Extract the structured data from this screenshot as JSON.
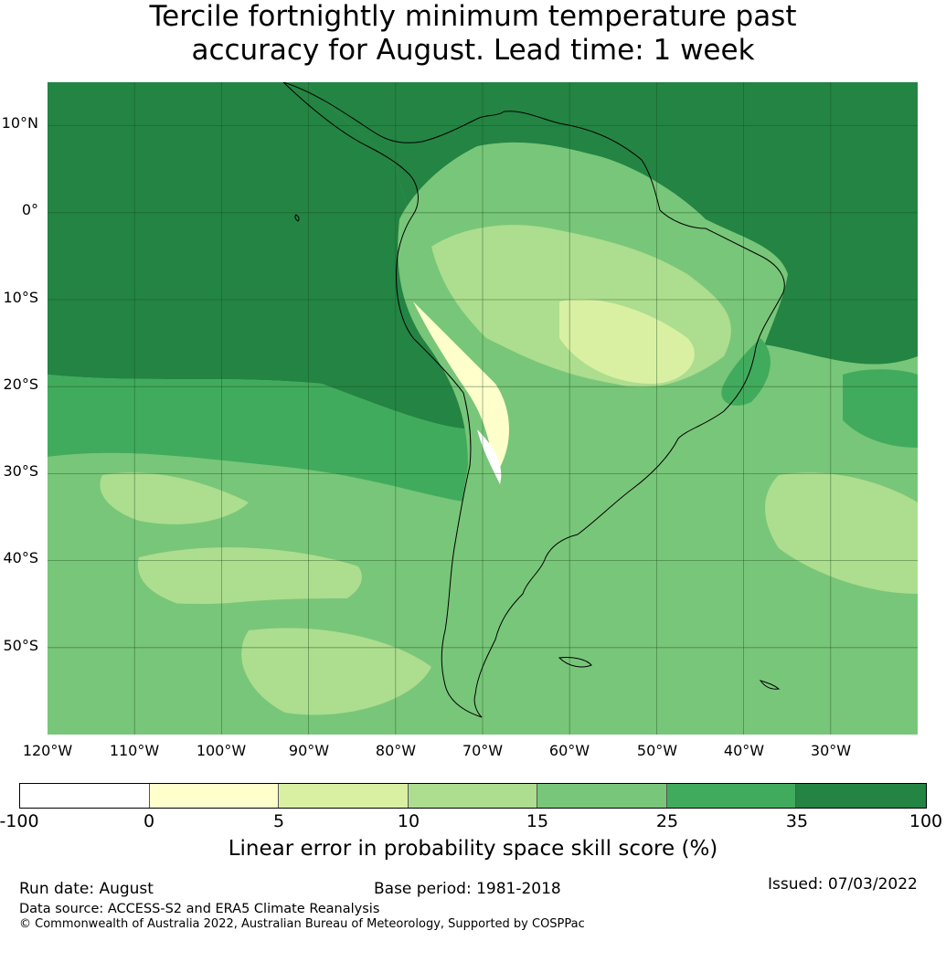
{
  "title_line1": "Tercile fortnightly minimum temperature past",
  "title_line2": "accuracy for August. Lead time: 1 week",
  "map": {
    "lat_labels": [
      "10°N",
      "0°",
      "10°S",
      "20°S",
      "30°S",
      "40°S",
      "50°S"
    ],
    "lon_labels": [
      "120°W",
      "110°W",
      "100°W",
      "90°W",
      "80°W",
      "70°W",
      "60°W",
      "50°W",
      "40°W",
      "30°W"
    ],
    "extent_lon": [
      -120,
      -20
    ],
    "extent_lat": [
      -60,
      15
    ]
  },
  "colorbar": {
    "ticks": [
      "-100",
      "0",
      "5",
      "10",
      "15",
      "25",
      "35",
      "100"
    ],
    "colors": [
      "#ffffff",
      "#ffffcc",
      "#d9f0a3",
      "#addd8e",
      "#78c679",
      "#41ab5d",
      "#238443"
    ],
    "label": "Linear error in probability space skill score (%)"
  },
  "footer": {
    "run_date": "Run date: August",
    "base_period": "Base period: 1981-2018",
    "issued": "Issued: 07/03/2022",
    "data_source": "Data source: ACCESS-S2 and ERA5 Climate Reanalysis",
    "copyright": "© Commonwealth of Australia 2022, Australian Bureau of Meteorology, Supported by COSPPac"
  }
}
